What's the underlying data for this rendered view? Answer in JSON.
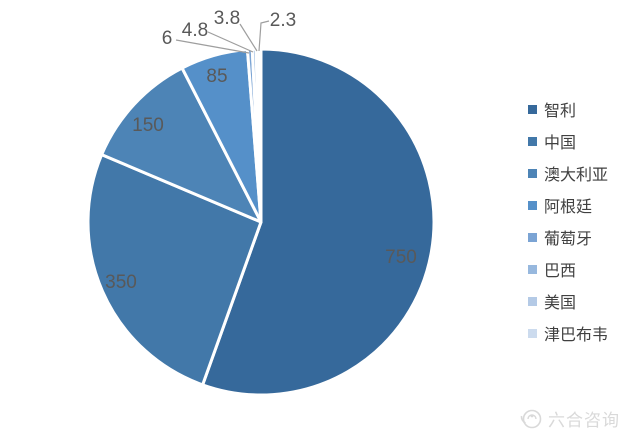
{
  "chart_data": {
    "type": "pie",
    "labels": [
      "智利",
      "中国",
      "澳大利亚",
      "阿根廷",
      "葡萄牙",
      "巴西",
      "美国",
      "津巴布韦"
    ],
    "values": [
      750,
      350,
      150,
      85,
      6,
      4.8,
      3.8,
      2.3
    ],
    "colors": [
      "#36699B",
      "#4278A9",
      "#4D84B6",
      "#5590C9",
      "#7BA4D4",
      "#97B8DE",
      "#B4CAE6",
      "#CCDBEE"
    ],
    "start_angle_deg": 0,
    "direction": "clockwise",
    "legend_position": "right",
    "grid": false,
    "slice_border_color": "#FFFFFF",
    "data_label_color": "#595959",
    "leader_line_color": "#9e9e9e",
    "legend_text_color": "#404040"
  },
  "watermark": {
    "text": "六合咨询",
    "color": "#d9d9d9",
    "icon": "liuhe-logo-icon"
  }
}
